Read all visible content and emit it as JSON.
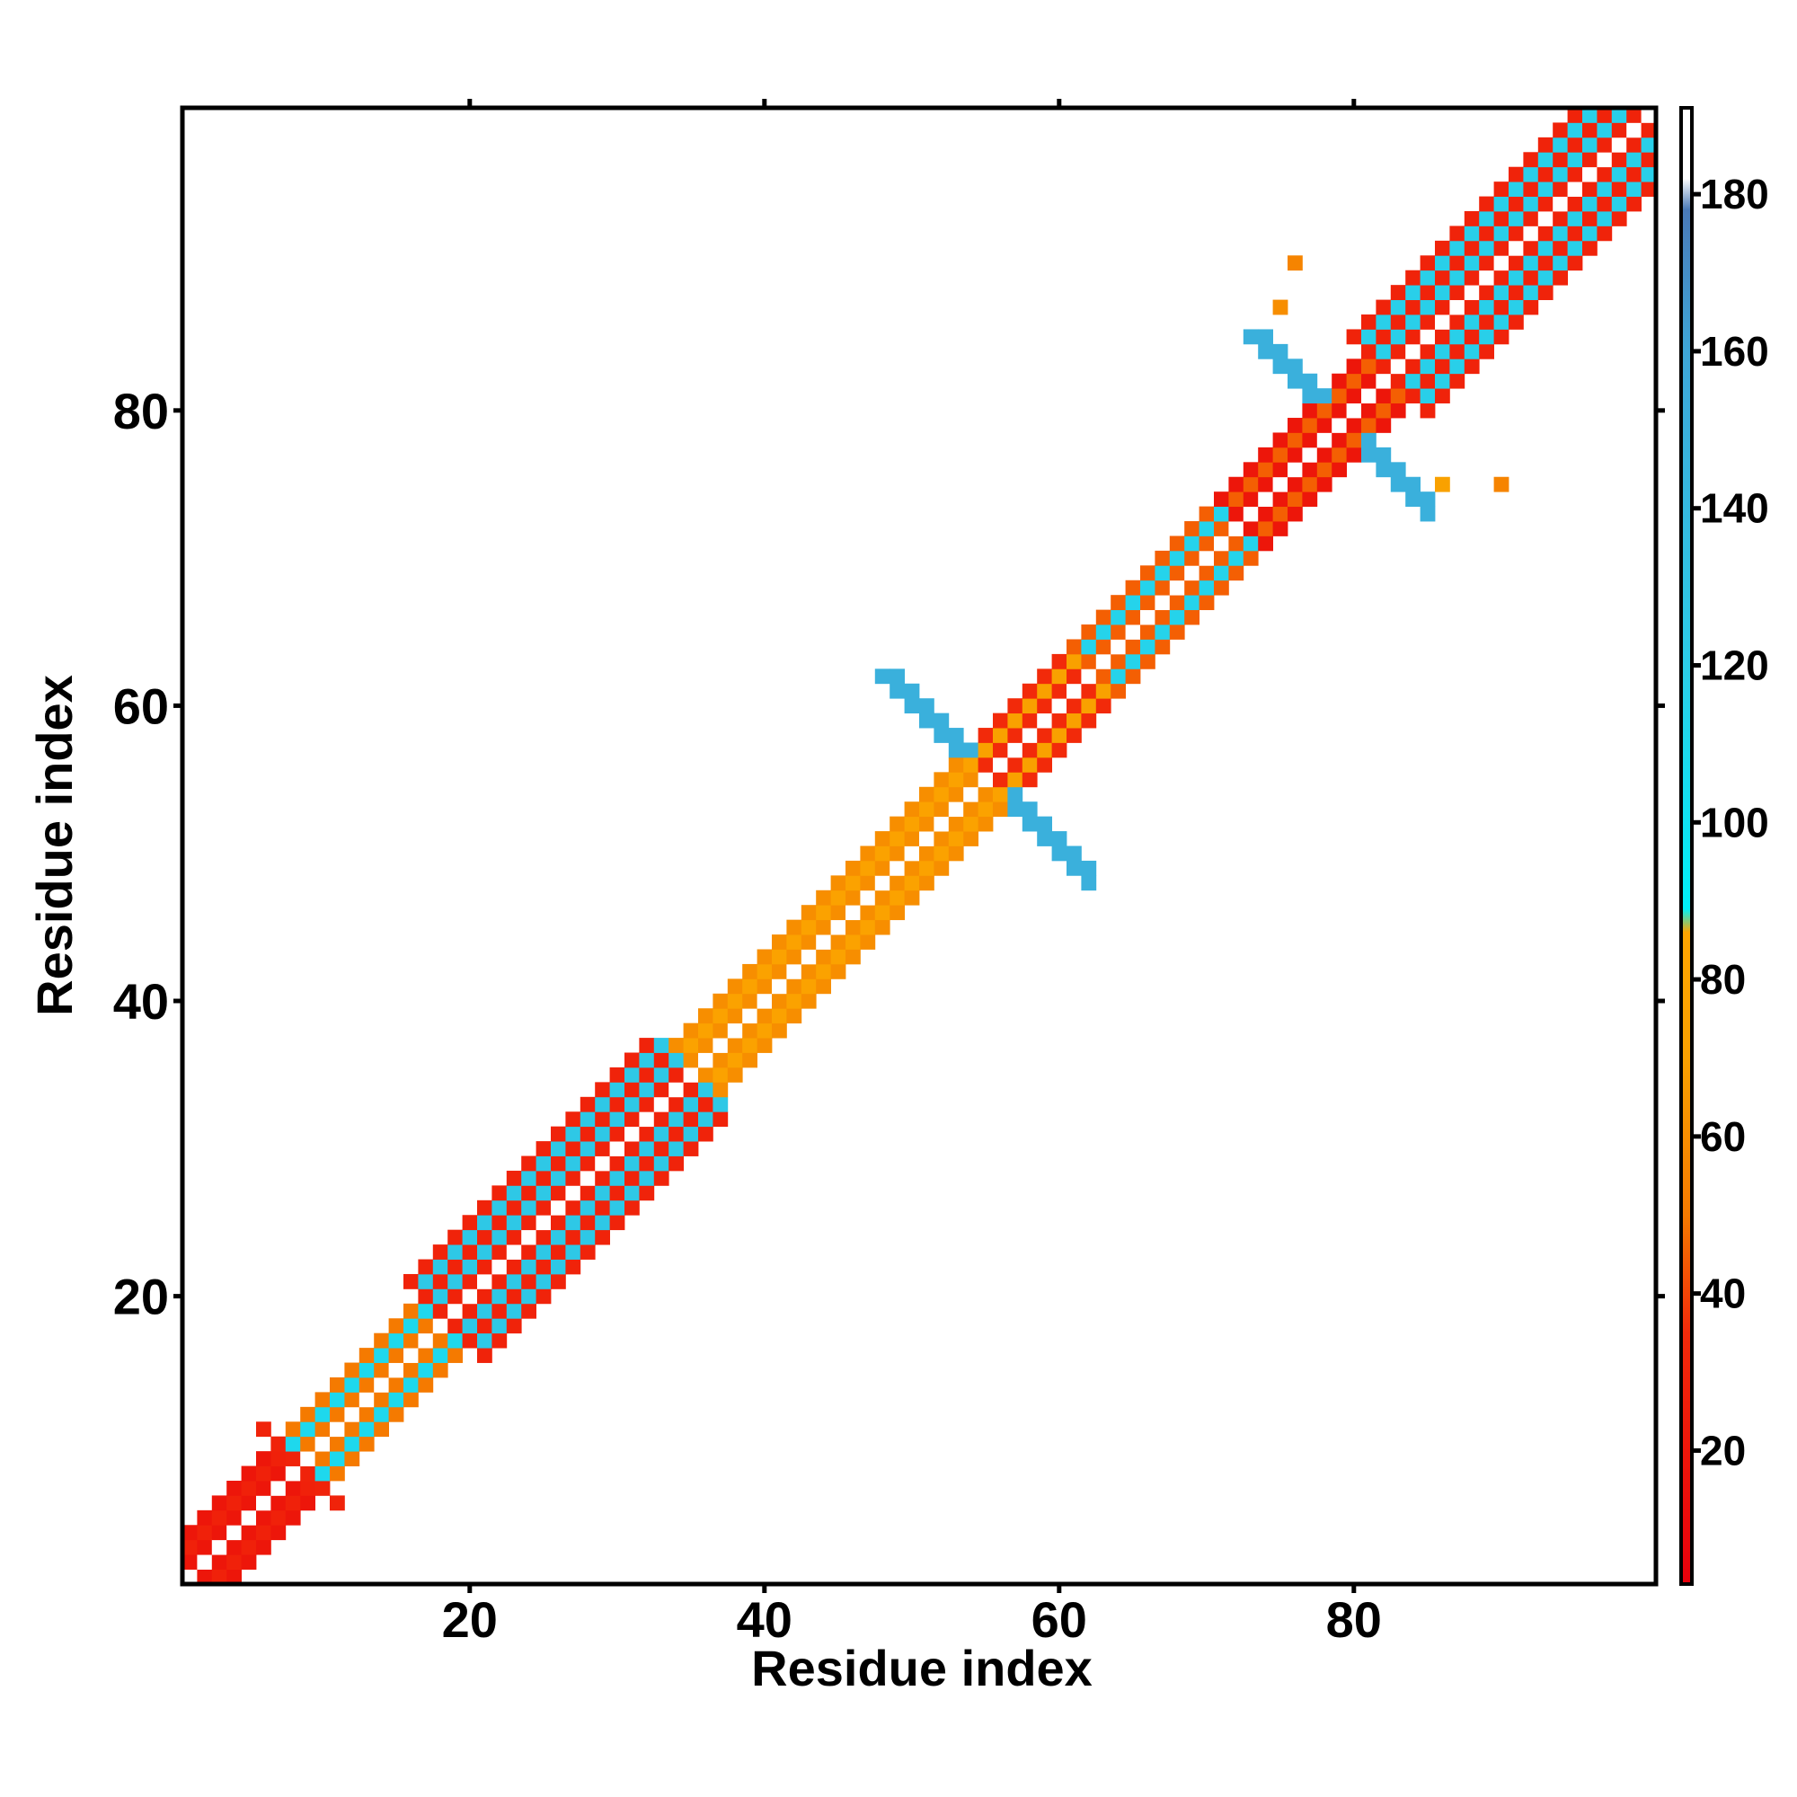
{
  "chart_data": {
    "type": "heatmap",
    "xlabel": "Residue index",
    "ylabel": "Residue index",
    "xlim": [
      0.5,
      100.5
    ],
    "ylim": [
      0.5,
      100.5
    ],
    "x_ticks": [
      20,
      40,
      60,
      80
    ],
    "y_ticks": [
      20,
      40,
      60,
      80
    ],
    "colorbar": {
      "range": [
        3,
        191
      ],
      "ticks": [
        20,
        40,
        60,
        80,
        100,
        120,
        140,
        160,
        180
      ],
      "stops": [
        {
          "value": 3,
          "color": "#e8000b"
        },
        {
          "value": 35,
          "color": "#f22a0a"
        },
        {
          "value": 50,
          "color": "#f57a00"
        },
        {
          "value": 70,
          "color": "#f9a100"
        },
        {
          "value": 86,
          "color": "#ffa500"
        },
        {
          "value": 89,
          "color": "#00f0f8"
        },
        {
          "value": 120,
          "color": "#2ccde8"
        },
        {
          "value": 160,
          "color": "#3ea6d8"
        },
        {
          "value": 178,
          "color": "#4a7ab8"
        },
        {
          "value": 182,
          "color": "#ffffff"
        },
        {
          "value": 191,
          "color": "#ffffff"
        }
      ]
    },
    "pattern": {
      "diagonal_value": 191,
      "diagonal_band": [
        {
          "range": [
            1,
            8
          ],
          "halfwidth": 3,
          "near": 20,
          "far": 28
        },
        {
          "range": [
            9,
            18
          ],
          "halfwidth": 3,
          "near": 50,
          "far": 110
        },
        {
          "range": [
            18,
            35
          ],
          "halfwidth": 5,
          "near": 30,
          "far": 125
        },
        {
          "range": [
            35,
            55
          ],
          "halfwidth": 3,
          "near": 60,
          "far": 75
        },
        {
          "range": [
            55,
            62
          ],
          "halfwidth": 3,
          "near": 35,
          "far": 70
        },
        {
          "range": [
            62,
            72
          ],
          "halfwidth": 3,
          "near": 45,
          "far": 115
        },
        {
          "range": [
            72,
            82
          ],
          "halfwidth": 3,
          "near": 20,
          "far": 45
        },
        {
          "range": [
            82,
            100
          ],
          "halfwidth": 5,
          "near": 30,
          "far": 118
        }
      ],
      "crossings": [
        {
          "center": [
            55,
            55
          ],
          "arm_length": 7,
          "value": 150
        },
        {
          "center": [
            79,
            79
          ],
          "arm_length": 6,
          "value": 150
        }
      ],
      "isolated_cells": [
        {
          "x": 76,
          "y": 90,
          "value": 55
        },
        {
          "x": 90,
          "y": 75,
          "value": 55
        },
        {
          "x": 75,
          "y": 87,
          "value": 60
        },
        {
          "x": 86,
          "y": 75,
          "value": 70
        }
      ]
    }
  }
}
